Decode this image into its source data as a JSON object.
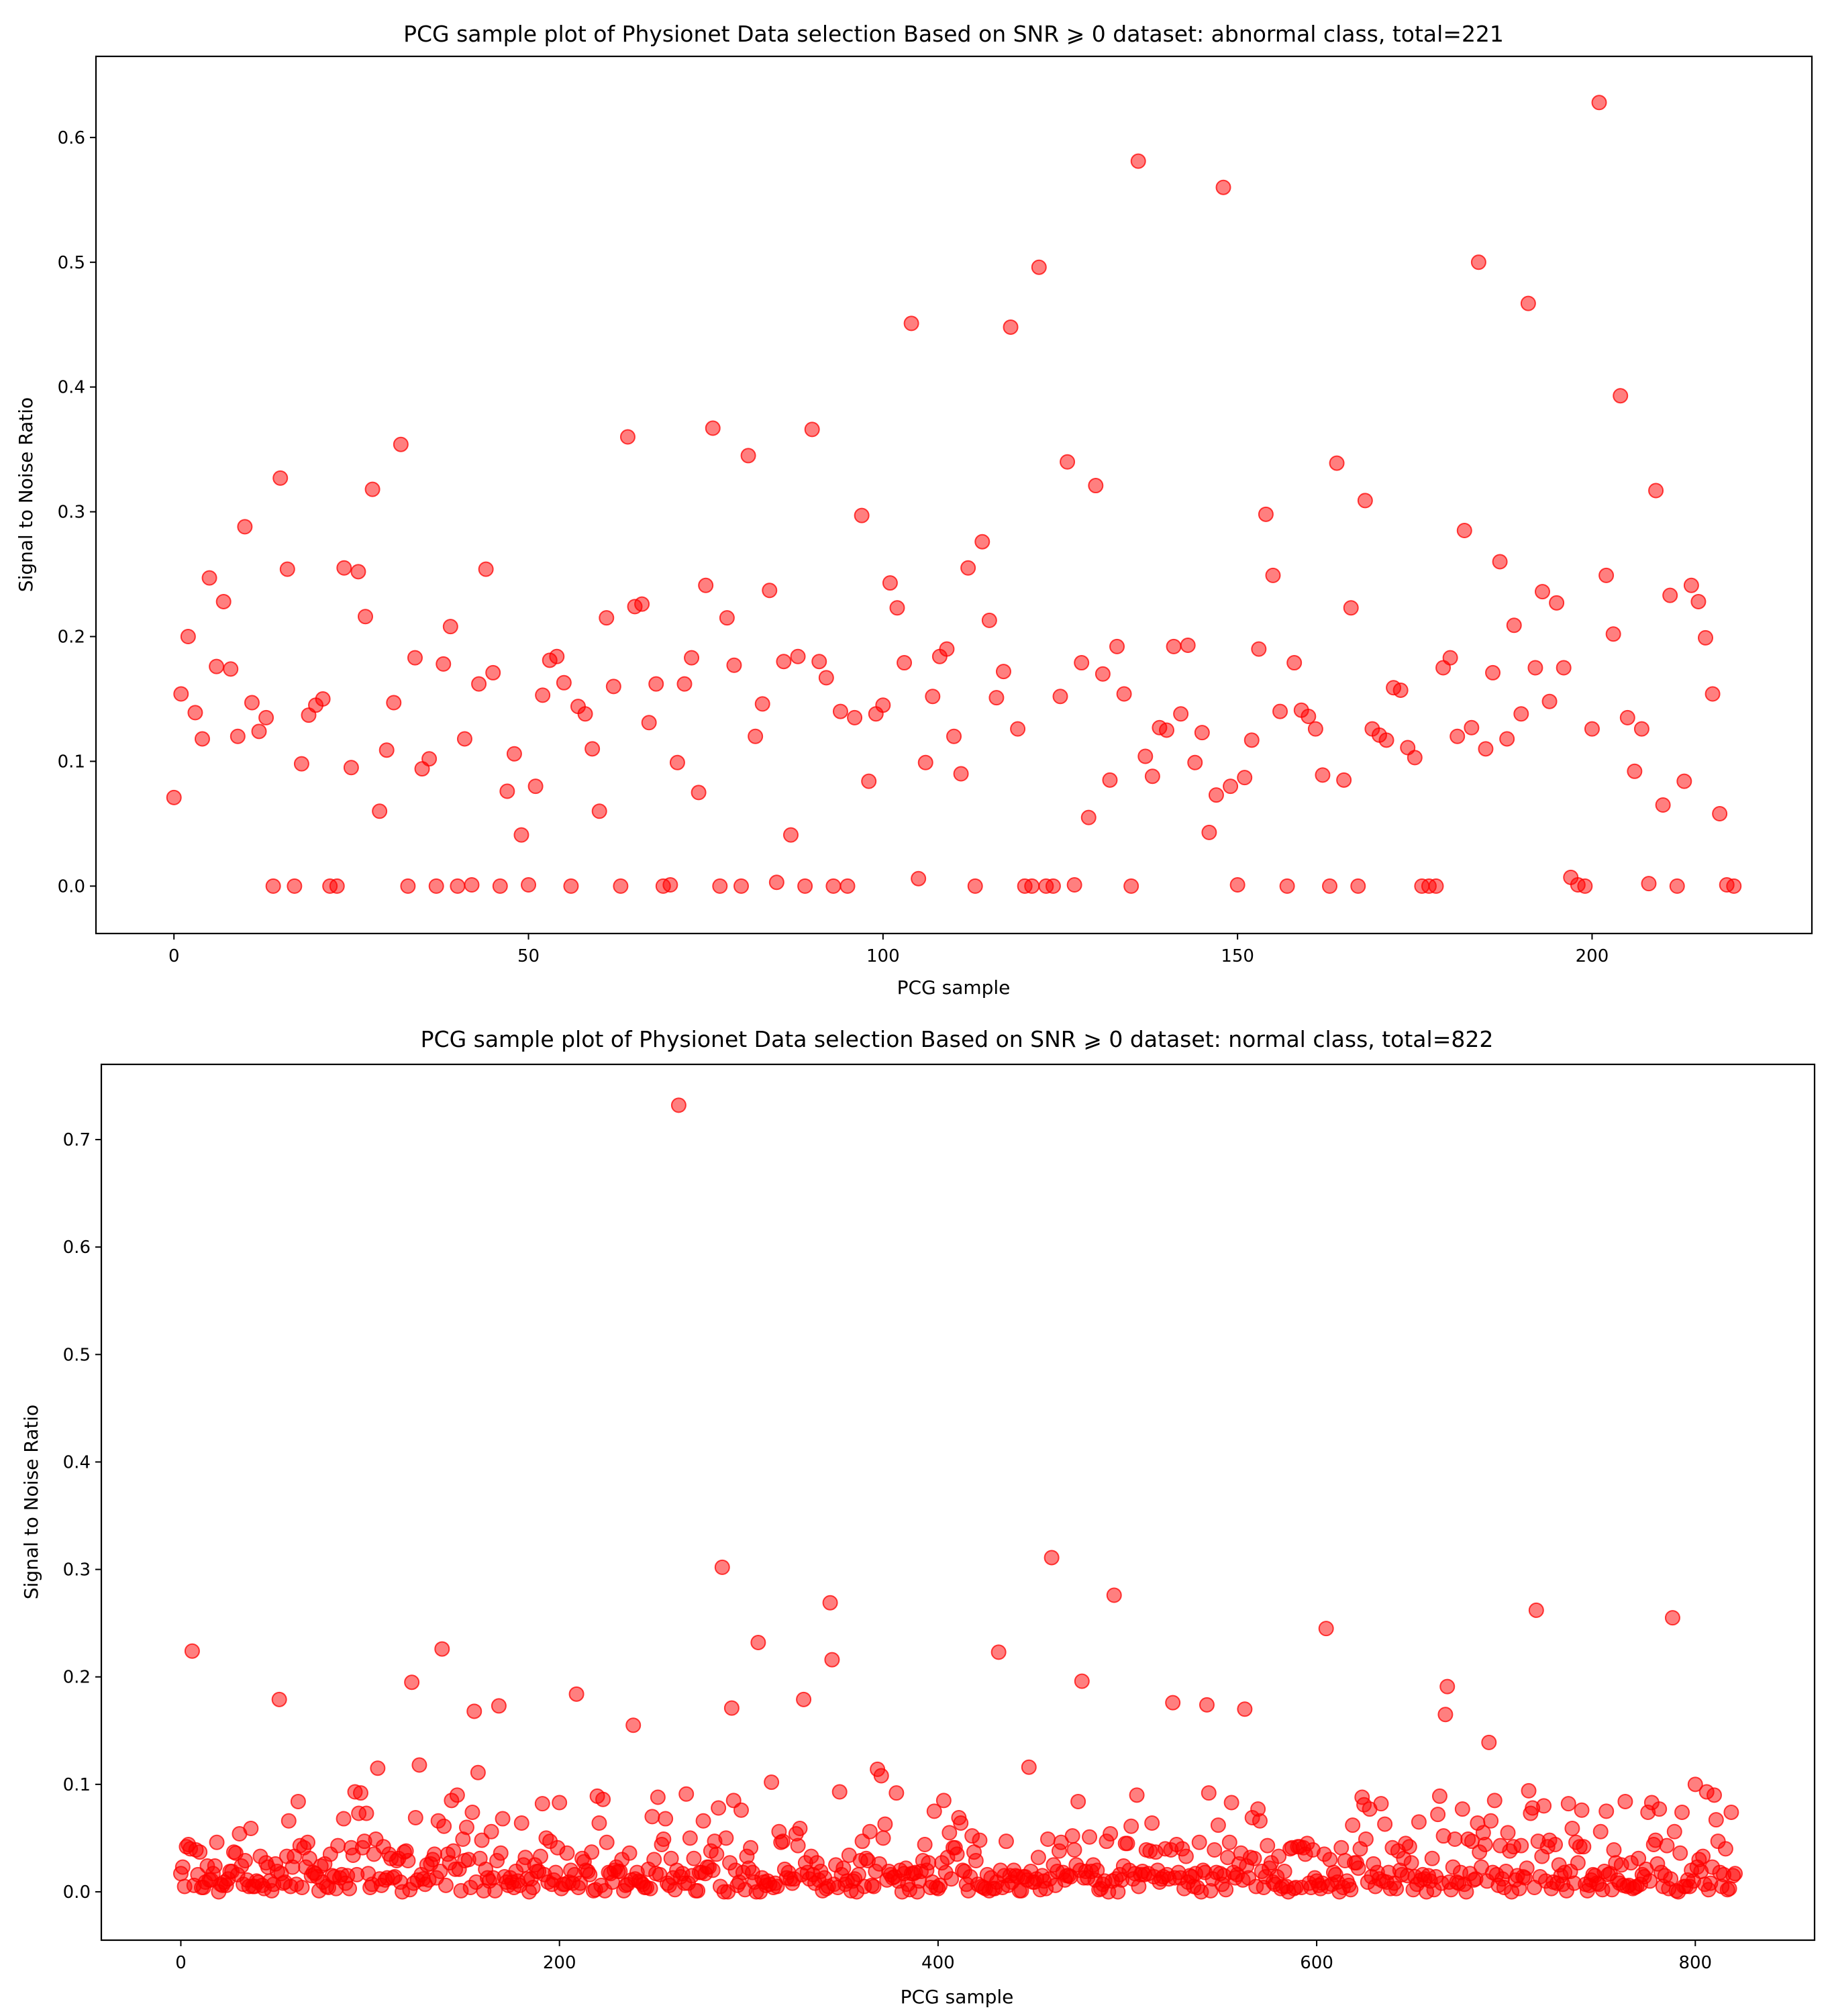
{
  "chart_data": [
    {
      "type": "scatter",
      "title": "PCG sample plot of Physionet Data selection Based on SNR ⩾ 0 dataset: abnormal class, total=221",
      "xlabel": "PCG sample",
      "ylabel": "Signal to Noise Ratio",
      "xlim": [
        -11,
        231
      ],
      "ylim": [
        -0.038,
        0.665
      ],
      "xticks": [
        0,
        50,
        100,
        150,
        200
      ],
      "yticks": [
        0.0,
        0.1,
        0.2,
        0.3,
        0.4,
        0.5,
        0.6
      ],
      "ytick_labels": [
        "0.0",
        "0.1",
        "0.2",
        "0.3",
        "0.4",
        "0.5",
        "0.6"
      ],
      "grid": false,
      "legend": "none",
      "marker_color": "#ff0000",
      "series": [
        {
          "x": [
            0,
            1,
            2,
            3,
            4,
            5,
            6,
            7,
            8,
            9,
            10,
            11,
            12,
            13,
            14,
            15,
            16,
            17,
            18,
            19,
            20,
            21,
            22,
            23,
            24,
            25,
            26,
            27,
            28,
            29,
            30,
            31,
            32,
            33,
            34,
            35,
            36,
            37,
            38,
            39,
            40,
            41,
            42,
            43,
            44,
            45,
            46,
            47,
            48,
            49,
            50,
            51,
            52,
            53,
            54,
            55,
            56,
            57,
            58,
            59,
            60,
            61,
            62,
            63,
            64,
            65,
            66,
            67,
            68,
            69,
            70,
            71,
            72,
            73,
            74,
            75,
            76,
            77,
            78,
            79,
            80,
            81,
            82,
            83,
            84,
            85,
            86,
            87,
            88,
            89,
            90,
            91,
            92,
            93,
            94,
            95,
            96,
            97,
            98,
            99,
            100,
            101,
            102,
            103,
            104,
            105,
            106,
            107,
            108,
            109,
            110,
            111,
            112,
            113,
            114,
            115,
            116,
            117,
            118,
            119,
            120,
            121,
            122,
            123,
            124,
            125,
            126,
            127,
            128,
            129,
            130,
            131,
            132,
            133,
            134,
            135,
            136,
            137,
            138,
            139,
            140,
            141,
            142,
            143,
            144,
            145,
            146,
            147,
            148,
            149,
            150,
            151,
            152,
            153,
            154,
            155,
            156,
            157,
            158,
            159,
            160,
            161,
            162,
            163,
            164,
            165,
            166,
            167,
            168,
            169,
            170,
            171,
            172,
            173,
            174,
            175,
            176,
            177,
            178,
            179,
            180,
            181,
            182,
            183,
            184,
            185,
            186,
            187,
            188,
            189,
            190,
            191,
            192,
            193,
            194,
            195,
            196,
            197,
            198,
            199,
            200,
            201,
            202,
            203,
            204,
            205,
            206,
            207,
            208,
            209,
            210,
            211,
            212,
            213,
            214,
            215,
            216,
            217,
            218,
            219,
            220
          ],
          "y": [
            0.071,
            0.154,
            0.2,
            0.139,
            0.118,
            0.247,
            0.176,
            0.228,
            0.174,
            0.12,
            0.288,
            0.147,
            0.124,
            0.135,
            0.0,
            0.327,
            0.254,
            0.0,
            0.098,
            0.137,
            0.145,
            0.15,
            0.0,
            0.0,
            0.255,
            0.095,
            0.252,
            0.216,
            0.318,
            0.06,
            0.109,
            0.147,
            0.354,
            0.0,
            0.183,
            0.094,
            0.102,
            0.0,
            0.178,
            0.208,
            0.0,
            0.118,
            0.001,
            0.162,
            0.254,
            0.171,
            0.0,
            0.076,
            0.106,
            0.041,
            0.001,
            0.08,
            0.153,
            0.181,
            0.184,
            0.163,
            0.0,
            0.144,
            0.138,
            0.11,
            0.06,
            0.215,
            0.16,
            0.0,
            0.36,
            0.224,
            0.226,
            0.131,
            0.162,
            0.0,
            0.001,
            0.099,
            0.162,
            0.183,
            0.075,
            0.241,
            0.367,
            0.0,
            0.215,
            0.177,
            0.0,
            0.345,
            0.12,
            0.146,
            0.237,
            0.003,
            0.18,
            0.041,
            0.184,
            0.0,
            0.366,
            0.18,
            0.167,
            0.0,
            0.14,
            0.0,
            0.135,
            0.297,
            0.084,
            0.138,
            0.145,
            0.243,
            0.223,
            0.179,
            0.451,
            0.006,
            0.099,
            0.152,
            0.184,
            0.19,
            0.12,
            0.09,
            0.255,
            0.0,
            0.276,
            0.213,
            0.151,
            0.172,
            0.448,
            0.126,
            0.0,
            0.0,
            0.496,
            0.0,
            0.0,
            0.152,
            0.34,
            0.001,
            0.179,
            0.055,
            0.321,
            0.17,
            0.085,
            0.192,
            0.154,
            0.0,
            0.581,
            0.104,
            0.088,
            0.127,
            0.125,
            0.192,
            0.138,
            0.193,
            0.099,
            0.123,
            0.043,
            0.073,
            0.56,
            0.08,
            0.001,
            0.087,
            0.117,
            0.19,
            0.298,
            0.249,
            0.14,
            0.0,
            0.179,
            0.141,
            0.136,
            0.126,
            0.089,
            0.0,
            0.339,
            0.085,
            0.223,
            0.0,
            0.309,
            0.126,
            0.121,
            0.117,
            0.159,
            0.157,
            0.111,
            0.103,
            0.0,
            0.0,
            0.0,
            0.175,
            0.183,
            0.12,
            0.285,
            0.127,
            0.5,
            0.11,
            0.171,
            0.26,
            0.118,
            0.209,
            0.138,
            0.467,
            0.175,
            0.236,
            0.148,
            0.227,
            0.175,
            0.007,
            0.001,
            0.0,
            0.126,
            0.628,
            0.249,
            0.202,
            0.393,
            0.135,
            0.092,
            0.126,
            0.002,
            0.317,
            0.065,
            0.233,
            0.0,
            0.084,
            0.241,
            0.228,
            0.199,
            0.154,
            0.058,
            0.001,
            0.0
          ]
        }
      ]
    },
    {
      "type": "scatter",
      "title": "PCG sample plot of Physionet Data selection Based on SNR ⩾ 0 dataset: normal class, total=822",
      "xlabel": "PCG sample",
      "ylabel": "Signal to Noise Ratio",
      "xlim": [
        -42,
        863
      ],
      "ylim": [
        -0.045,
        0.77
      ],
      "xticks": [
        0,
        200,
        400,
        600,
        800
      ],
      "yticks": [
        0.0,
        0.1,
        0.2,
        0.3,
        0.4,
        0.5,
        0.6,
        0.7
      ],
      "ytick_labels": [
        "0.0",
        "0.1",
        "0.2",
        "0.3",
        "0.4",
        "0.5",
        "0.6",
        "0.7"
      ],
      "grid": false,
      "legend": "none",
      "marker_color": "#ff0000",
      "n_points": 822,
      "notable_points": {
        "x": [
          6,
          52,
          104,
          122,
          126,
          138,
          155,
          157,
          168,
          191,
          209,
          239,
          263,
          286,
          291,
          305,
          312,
          329,
          343,
          344,
          368,
          370,
          432,
          448,
          460,
          476,
          493,
          524,
          542,
          562,
          605,
          668,
          669,
          691,
          716,
          788,
          800,
          806
        ],
        "y": [
          0.224,
          0.179,
          0.115,
          0.195,
          0.118,
          0.226,
          0.168,
          0.111,
          0.173,
          0.082,
          0.184,
          0.155,
          0.732,
          0.302,
          0.171,
          0.232,
          0.102,
          0.179,
          0.269,
          0.216,
          0.114,
          0.108,
          0.223,
          0.116,
          0.311,
          0.196,
          0.276,
          0.176,
          0.174,
          0.17,
          0.245,
          0.165,
          0.191,
          0.139,
          0.262,
          0.255,
          0.1,
          0.093
        ]
      }
    }
  ]
}
